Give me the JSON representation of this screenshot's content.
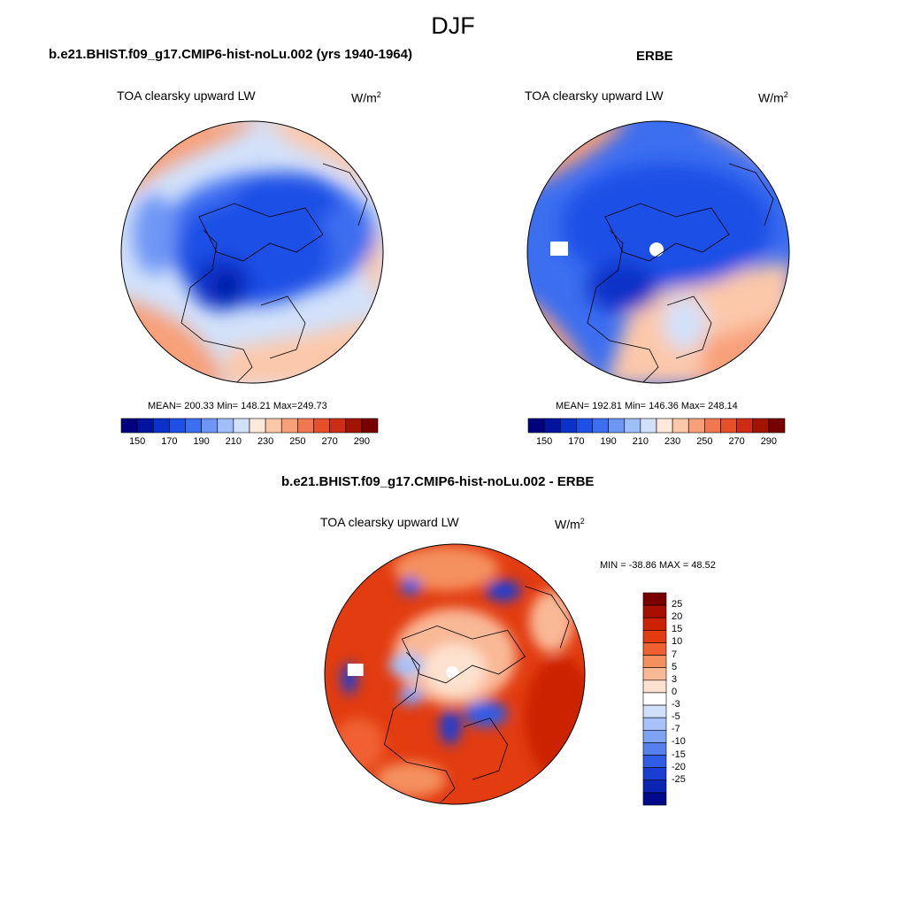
{
  "season": "DJF",
  "panels": [
    {
      "title": "b.e21.BHIST.f09_g17.CMIP6-hist-noLu.002 (yrs 1940-1964)",
      "field": "TOA clearsky upward LW",
      "units_base": "W/m",
      "units_exp": "2",
      "stats": "MEAN= 200.33  Min= 148.21  Max=249.73"
    },
    {
      "title": "ERBE",
      "field": "TOA clearsky upward LW",
      "units_base": "W/m",
      "units_exp": "2",
      "stats": "MEAN= 192.81  Min= 146.36  Max= 248.14"
    },
    {
      "title": "b.e21.BHIST.f09_g17.CMIP6-hist-noLu.002 - ERBE",
      "field": "TOA clearsky upward LW",
      "units_base": "W/m",
      "units_exp": "2",
      "stats": "MIN = -38.86 MAX =  48.52"
    }
  ],
  "colorbar_abs": {
    "colors": [
      "#00007f",
      "#0014a0",
      "#0a32c8",
      "#1e50e6",
      "#3c6ef0",
      "#6e96f5",
      "#a0bef8",
      "#d2e1fa",
      "#fde9dc",
      "#fcc8aa",
      "#f8a07a",
      "#f07850",
      "#e65028",
      "#cd2d14",
      "#a01400",
      "#780000"
    ],
    "labels": [
      "150",
      "170",
      "190",
      "210",
      "230",
      "250",
      "270",
      "290"
    ]
  },
  "colorbar_diff": {
    "colors": [
      "#7a0000",
      "#a80f00",
      "#cc2200",
      "#e23c10",
      "#f06030",
      "#f5905e",
      "#f9b896",
      "#fde2cf",
      "#ffffff",
      "#d0e0fa",
      "#a6c2f8",
      "#7ea2f4",
      "#5680ee",
      "#305ce6",
      "#1a3ed2",
      "#0a24b4",
      "#000a8a"
    ],
    "labels": [
      "25",
      "20",
      "15",
      "10",
      "7",
      "5",
      "3",
      "0",
      "-3",
      "-5",
      "-7",
      "-10",
      "-15",
      "-20",
      "-25"
    ]
  }
}
